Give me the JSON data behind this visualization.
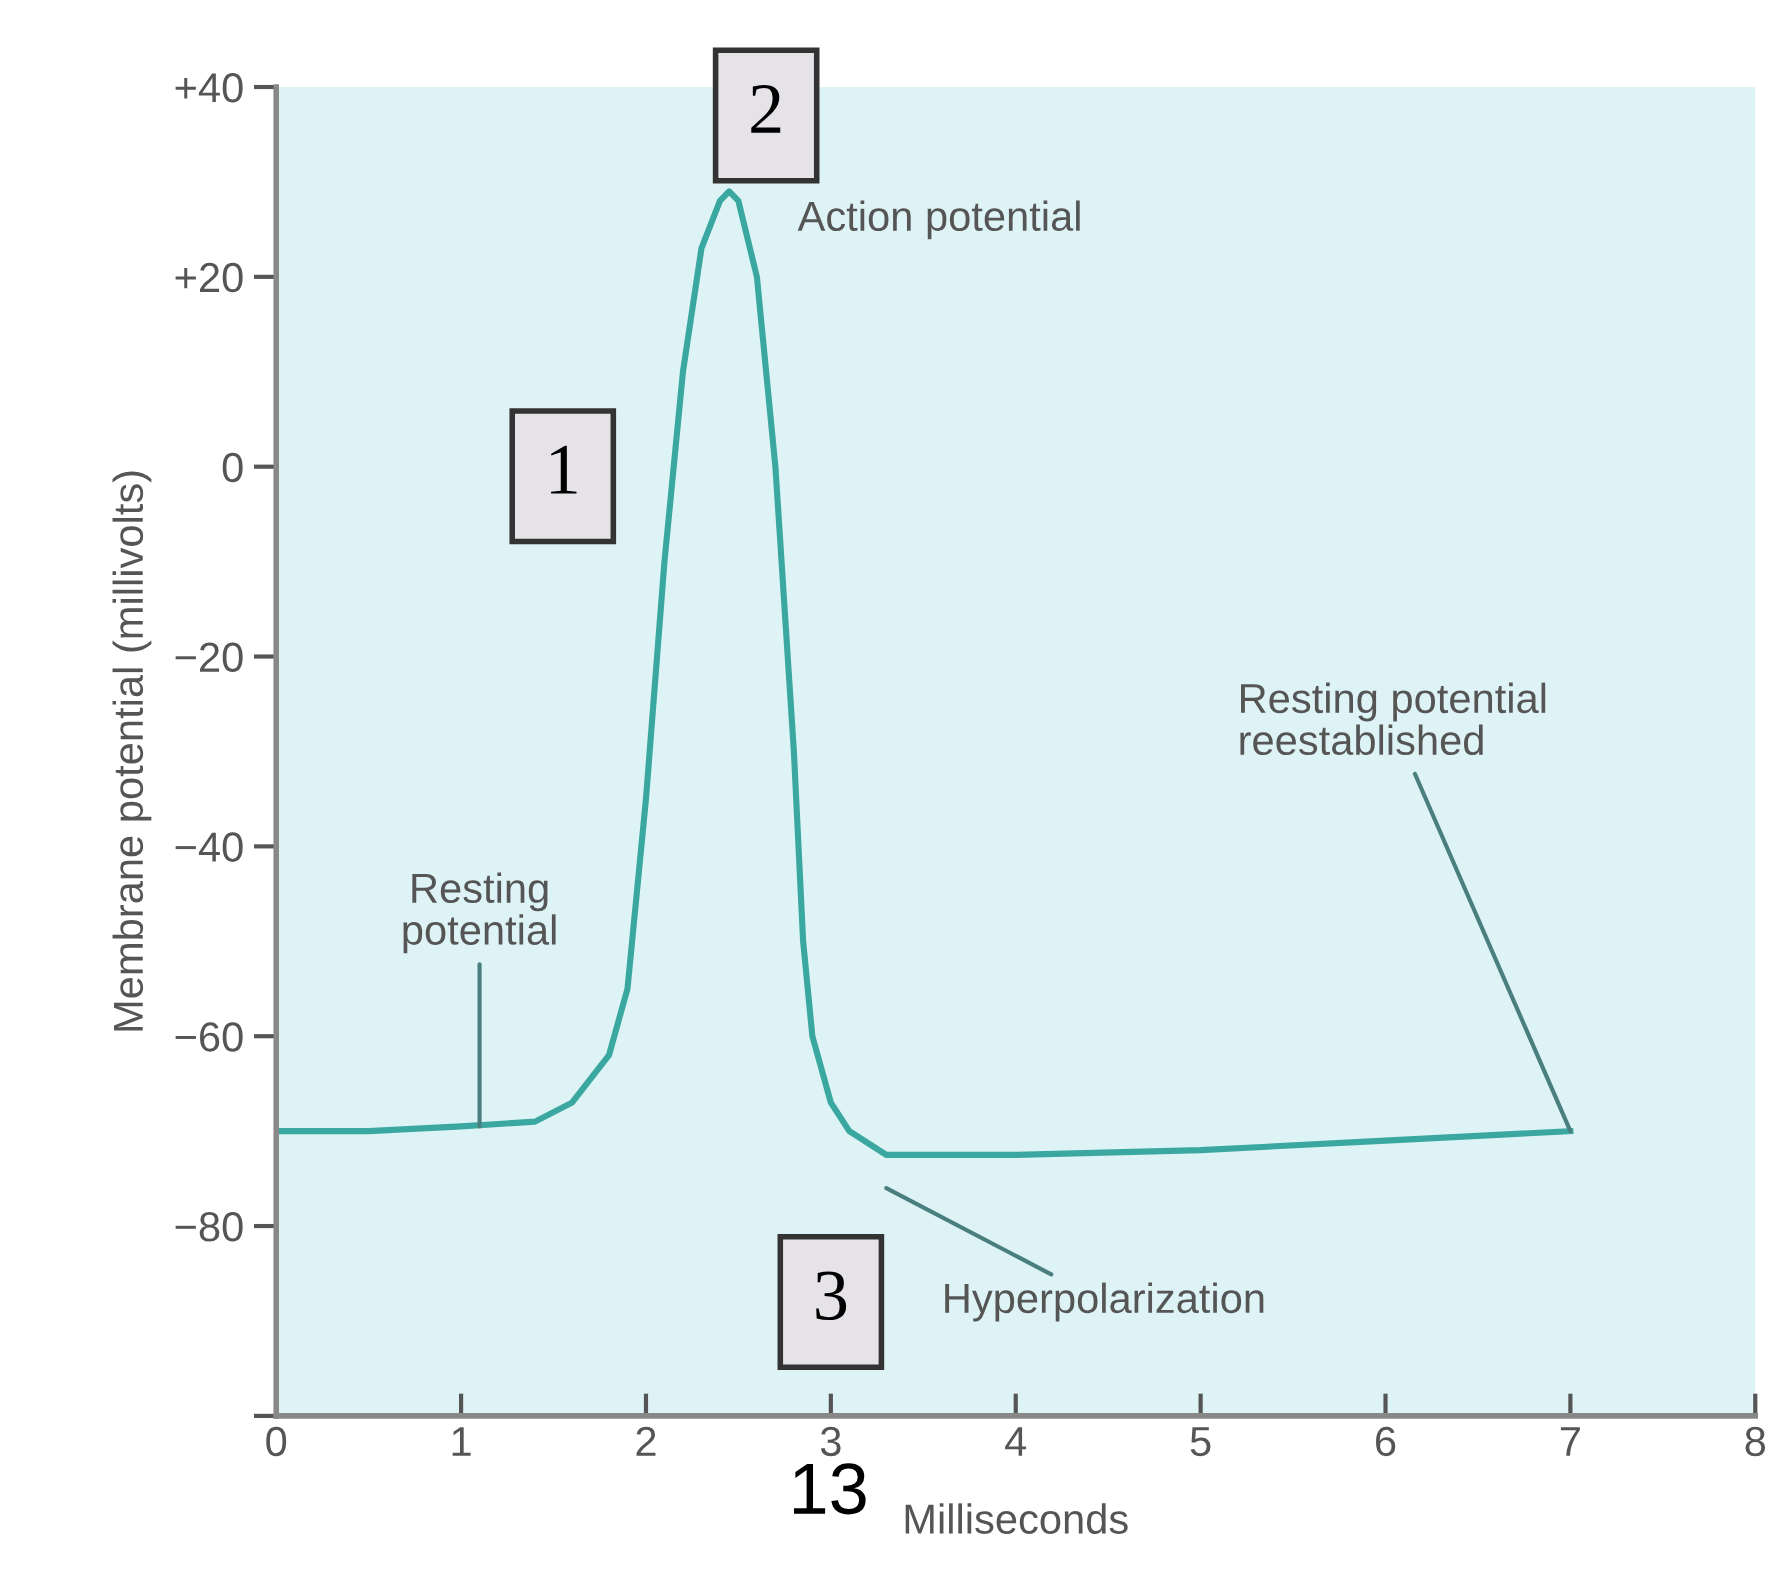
{
  "chart_data": {
    "type": "line",
    "xlabel": "Milliseconds",
    "ylabel": "Membrane potential (millivolts)",
    "x": [
      0,
      0.5,
      1.0,
      1.4,
      1.6,
      1.8,
      1.9,
      2.0,
      2.1,
      2.2,
      2.3,
      2.4,
      2.45,
      2.5,
      2.6,
      2.7,
      2.8,
      2.85,
      2.9,
      3.0,
      3.1,
      3.3,
      4,
      5,
      6,
      7
    ],
    "series": [
      {
        "color": "#3aa8a0",
        "values": [
          -70,
          -70,
          -69.5,
          -69,
          -67,
          -62,
          -55,
          -35,
          -10,
          10,
          23,
          28,
          29,
          28,
          20,
          0,
          -30,
          -50,
          -60,
          -67,
          -70,
          -72.5,
          -72.5,
          -72,
          -71,
          -70
        ]
      }
    ],
    "xlim": [
      0,
      8
    ],
    "xticks": [
      0,
      1,
      2,
      3,
      4,
      5,
      6,
      7,
      8
    ],
    "ylim": [
      -100,
      40
    ],
    "yticks": [
      {
        "value": 40,
        "label": "+40"
      },
      {
        "value": 20,
        "label": "+20"
      },
      0,
      {
        "value": -20,
        "label": "−20"
      },
      {
        "value": -40,
        "label": "−40"
      },
      {
        "value": -60,
        "label": "−60"
      },
      {
        "value": -80,
        "label": "−80"
      },
      {
        "value": -100,
        "label": null
      }
    ],
    "grid": false,
    "legend": false,
    "marker": "none",
    "line_style": "solid",
    "annotations": [
      {
        "text": "Resting\npotential",
        "x": 1.1,
        "y": -69.5
      },
      {
        "text": "Action potential",
        "x": 2.45,
        "y": 29
      },
      "Hyperpolarization",
      {
        "text": "Resting potential\nreestablished",
        "x": 7.0,
        "y": -70
      },
      "1",
      "2",
      "3",
      "13"
    ]
  }
}
